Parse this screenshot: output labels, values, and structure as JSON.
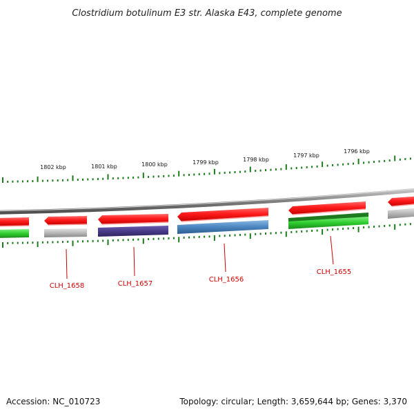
{
  "title": "Clostridium botulinum E3 str. Alaska E43, complete genome",
  "footer": {
    "accession": "Accession: NC_010723",
    "summary": "Topology: circular; Length: 3,659,644 bp; Genes: 3,370"
  },
  "scale": {
    "tick_labels": [
      "1802 kbp",
      "1801 kbp",
      "1800 kbp",
      "1799 kbp",
      "1798 kbp",
      "1797 kbp",
      "1796 kbp"
    ]
  },
  "genes": [
    {
      "locus": "CLH_1658"
    },
    {
      "locus": "CLH_1657"
    },
    {
      "locus": "CLH_1656"
    },
    {
      "locus": "CLH_1655"
    }
  ],
  "colors": {
    "forward_cds": "#ff1a1a",
    "backbone": "#8a8a8a",
    "ticks": "#1a7a1a",
    "label": "#cc0000",
    "cog_colors": [
      "#2ecc2e",
      "#b8b8b8",
      "#4a3a8a",
      "#4a86c0",
      "#2db82d",
      "#b8b8b8"
    ]
  }
}
